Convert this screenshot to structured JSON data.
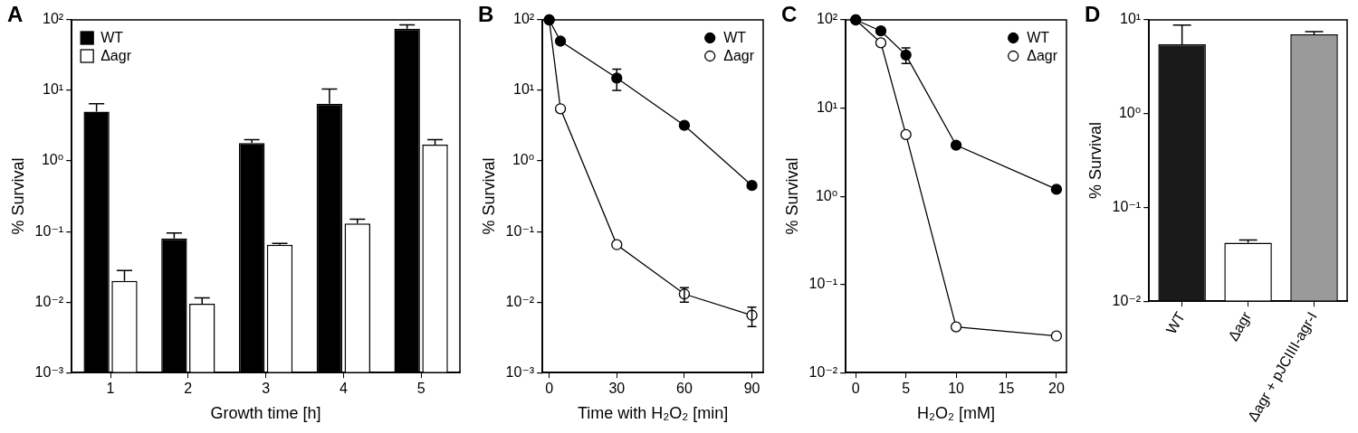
{
  "chart_data": [
    {
      "panel": "A",
      "type": "bar",
      "categories": [
        "1",
        "2",
        "3",
        "4",
        "5"
      ],
      "x_label": "Growth time [h]",
      "y_label": "% Survival",
      "log": "y",
      "ylim": [
        0.001,
        100
      ],
      "yticks": [
        {
          "value": 0.001,
          "label": "10⁻³"
        },
        {
          "value": 0.01,
          "label": "10⁻²"
        },
        {
          "value": 0.1,
          "label": "10⁻¹"
        },
        {
          "value": 1,
          "label": "10⁰"
        },
        {
          "value": 10,
          "label": "10¹"
        },
        {
          "value": 100,
          "label": "10²"
        }
      ],
      "grid": false,
      "legend": "upper left",
      "series": [
        {
          "name": "WT",
          "color": "#000000",
          "values": [
            5,
            0.08,
            1.8,
            6.5,
            75
          ],
          "errors": [
            1.5,
            0.015,
            0.2,
            4,
            10
          ]
        },
        {
          "name": "Δagr",
          "color": "#ffffff",
          "values": [
            0.02,
            0.0095,
            0.065,
            0.13,
            1.7
          ],
          "errors": [
            0.008,
            0.002,
            0.003,
            0.02,
            0.3
          ]
        }
      ]
    },
    {
      "panel": "B",
      "type": "line",
      "x": [
        0,
        5,
        30,
        60,
        90
      ],
      "x_label": "Time with H₂O₂ [min]",
      "y_label": "% Survival",
      "xlim": [
        -3,
        95
      ],
      "xticks": [
        0,
        30,
        60,
        90
      ],
      "log": "y",
      "ylim": [
        0.001,
        100
      ],
      "yticks": [
        {
          "value": 0.001,
          "label": "10⁻³"
        },
        {
          "value": 0.01,
          "label": "10⁻²"
        },
        {
          "value": 0.1,
          "label": "10⁻¹"
        },
        {
          "value": 1,
          "label": "10⁰"
        },
        {
          "value": 10,
          "label": "10¹"
        },
        {
          "value": 100,
          "label": "10²"
        }
      ],
      "grid": false,
      "legend": "upper right",
      "series": [
        {
          "name": "WT",
          "color": "#000000",
          "marker": "circle",
          "values": [
            100,
            50,
            15,
            3.2,
            0.45
          ],
          "errors": [
            null,
            null,
            5,
            null,
            null
          ]
        },
        {
          "name": "Δagr",
          "color": "#ffffff",
          "marker": "circle",
          "values": [
            100,
            5.5,
            0.065,
            0.013,
            0.0065
          ],
          "errors": [
            null,
            null,
            null,
            0.003,
            0.002
          ]
        }
      ]
    },
    {
      "panel": "C",
      "type": "line",
      "x": [
        0,
        2.5,
        5,
        10,
        20
      ],
      "x_label": "H₂O₂ [mM]",
      "y_label": "% Survival",
      "xlim": [
        -1,
        21
      ],
      "xticks": [
        0,
        5,
        10,
        15,
        20
      ],
      "log": "y",
      "ylim": [
        0.01,
        100
      ],
      "yticks": [
        {
          "value": 0.01,
          "label": "10⁻²"
        },
        {
          "value": 0.1,
          "label": "10⁻¹"
        },
        {
          "value": 1,
          "label": "10⁰"
        },
        {
          "value": 10,
          "label": "10¹"
        },
        {
          "value": 100,
          "label": "10²"
        }
      ],
      "grid": false,
      "legend": "upper right",
      "series": [
        {
          "name": "WT",
          "color": "#000000",
          "marker": "circle",
          "values": [
            100,
            75,
            40,
            3.8,
            1.2
          ],
          "errors": [
            null,
            null,
            8,
            null,
            null
          ]
        },
        {
          "name": "Δagr",
          "color": "#ffffff",
          "marker": "circle",
          "values": [
            100,
            55,
            5,
            0.033,
            0.026
          ],
          "errors": [
            null,
            null,
            null,
            null,
            null
          ]
        }
      ]
    },
    {
      "panel": "D",
      "type": "bar",
      "categories": [
        "WT",
        "Δagr",
        "Δagr + pJCIIII-agr-I"
      ],
      "y_label": "% Survival",
      "log": "y",
      "ylim": [
        0.01,
        10
      ],
      "yticks": [
        {
          "value": 0.01,
          "label": "10⁻²"
        },
        {
          "value": 0.1,
          "label": "10⁻¹"
        },
        {
          "value": 1,
          "label": "10⁰"
        },
        {
          "value": 10,
          "label": "10¹"
        }
      ],
      "grid": false,
      "values": [
        5.5,
        0.042,
        7
      ],
      "errors": [
        3.3,
        0.003,
        0.5
      ],
      "colors": [
        "#1a1a1a",
        "#ffffff",
        "#9a9a9a"
      ]
    }
  ]
}
